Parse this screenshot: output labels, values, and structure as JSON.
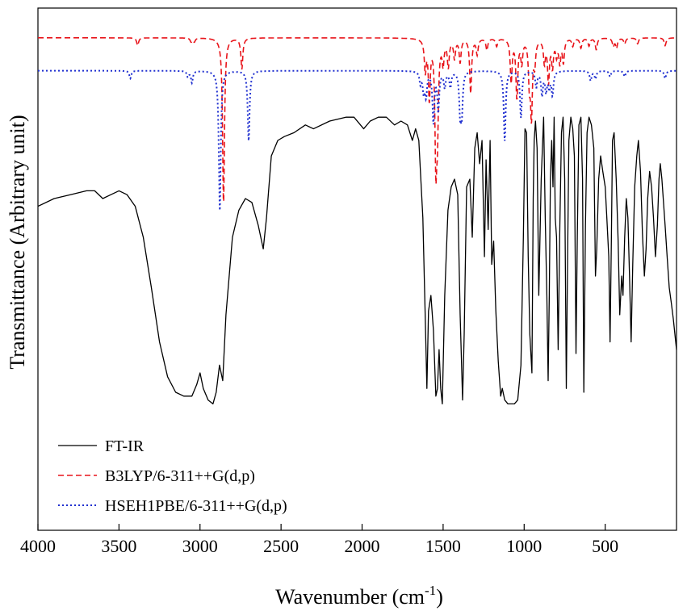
{
  "chart_data": {
    "type": "line",
    "title": "",
    "xlabel": "Wavenumber (cm",
    "xlabel_sup": "-1",
    "xlabel_suffix": ")",
    "ylabel": "Transmittance (Arbitrary unit)",
    "xlim": [
      4000,
      60
    ],
    "x_reversed": true,
    "x_ticks": [
      4000,
      3500,
      3000,
      2500,
      2000,
      1500,
      1000,
      500
    ],
    "y_ticks_shown": false,
    "grid": false,
    "legend_position": "bottom-left",
    "series": [
      {
        "name": "FT-IR",
        "style": "solid",
        "color": "#000000",
        "points": [
          [
            4000,
            0.53
          ],
          [
            3900,
            0.55
          ],
          [
            3800,
            0.56
          ],
          [
            3700,
            0.57
          ],
          [
            3650,
            0.57
          ],
          [
            3600,
            0.55
          ],
          [
            3550,
            0.56
          ],
          [
            3500,
            0.57
          ],
          [
            3450,
            0.56
          ],
          [
            3400,
            0.53
          ],
          [
            3350,
            0.45
          ],
          [
            3300,
            0.32
          ],
          [
            3250,
            0.18
          ],
          [
            3200,
            0.09
          ],
          [
            3150,
            0.05
          ],
          [
            3100,
            0.04
          ],
          [
            3050,
            0.04
          ],
          [
            3020,
            0.07
          ],
          [
            3000,
            0.1
          ],
          [
            2980,
            0.06
          ],
          [
            2950,
            0.03
          ],
          [
            2920,
            0.02
          ],
          [
            2900,
            0.05
          ],
          [
            2880,
            0.12
          ],
          [
            2860,
            0.08
          ],
          [
            2840,
            0.25
          ],
          [
            2800,
            0.45
          ],
          [
            2760,
            0.52
          ],
          [
            2720,
            0.55
          ],
          [
            2680,
            0.54
          ],
          [
            2640,
            0.48
          ],
          [
            2610,
            0.42
          ],
          [
            2590,
            0.5
          ],
          [
            2560,
            0.66
          ],
          [
            2520,
            0.7
          ],
          [
            2480,
            0.71
          ],
          [
            2420,
            0.72
          ],
          [
            2350,
            0.74
          ],
          [
            2300,
            0.73
          ],
          [
            2200,
            0.75
          ],
          [
            2100,
            0.76
          ],
          [
            2050,
            0.76
          ],
          [
            1990,
            0.73
          ],
          [
            1950,
            0.75
          ],
          [
            1900,
            0.76
          ],
          [
            1850,
            0.76
          ],
          [
            1800,
            0.74
          ],
          [
            1760,
            0.75
          ],
          [
            1720,
            0.74
          ],
          [
            1690,
            0.7
          ],
          [
            1670,
            0.73
          ],
          [
            1650,
            0.7
          ],
          [
            1625,
            0.5
          ],
          [
            1610,
            0.24
          ],
          [
            1600,
            0.06
          ],
          [
            1590,
            0.26
          ],
          [
            1575,
            0.3
          ],
          [
            1560,
            0.21
          ],
          [
            1545,
            0.04
          ],
          [
            1535,
            0.06
          ],
          [
            1525,
            0.16
          ],
          [
            1515,
            0.06
          ],
          [
            1505,
            0.02
          ],
          [
            1490,
            0.3
          ],
          [
            1470,
            0.52
          ],
          [
            1450,
            0.58
          ],
          [
            1430,
            0.6
          ],
          [
            1410,
            0.56
          ],
          [
            1395,
            0.25
          ],
          [
            1380,
            0.03
          ],
          [
            1370,
            0.2
          ],
          [
            1355,
            0.58
          ],
          [
            1335,
            0.6
          ],
          [
            1320,
            0.45
          ],
          [
            1305,
            0.68
          ],
          [
            1290,
            0.72
          ],
          [
            1275,
            0.64
          ],
          [
            1260,
            0.7
          ],
          [
            1245,
            0.4
          ],
          [
            1235,
            0.65
          ],
          [
            1222,
            0.47
          ],
          [
            1210,
            0.7
          ],
          [
            1200,
            0.38
          ],
          [
            1188,
            0.44
          ],
          [
            1175,
            0.26
          ],
          [
            1160,
            0.13
          ],
          [
            1145,
            0.04
          ],
          [
            1135,
            0.06
          ],
          [
            1120,
            0.03
          ],
          [
            1100,
            0.02
          ],
          [
            1080,
            0.02
          ],
          [
            1060,
            0.02
          ],
          [
            1040,
            0.03
          ],
          [
            1020,
            0.12
          ],
          [
            1005,
            0.45
          ],
          [
            995,
            0.73
          ],
          [
            985,
            0.72
          ],
          [
            975,
            0.4
          ],
          [
            965,
            0.2
          ],
          [
            952,
            0.1
          ],
          [
            944,
            0.55
          ],
          [
            938,
            0.7
          ],
          [
            930,
            0.75
          ],
          [
            920,
            0.68
          ],
          [
            910,
            0.3
          ],
          [
            895,
            0.6
          ],
          [
            880,
            0.76
          ],
          [
            870,
            0.5
          ],
          [
            860,
            0.3
          ],
          [
            852,
            0.08
          ],
          [
            845,
            0.3
          ],
          [
            838,
            0.6
          ],
          [
            830,
            0.7
          ],
          [
            822,
            0.58
          ],
          [
            815,
            0.76
          ],
          [
            808,
            0.5
          ],
          [
            800,
            0.45
          ],
          [
            790,
            0.16
          ],
          [
            780,
            0.48
          ],
          [
            770,
            0.72
          ],
          [
            760,
            0.76
          ],
          [
            750,
            0.6
          ],
          [
            740,
            0.06
          ],
          [
            732,
            0.4
          ],
          [
            724,
            0.7
          ],
          [
            712,
            0.76
          ],
          [
            700,
            0.73
          ],
          [
            690,
            0.66
          ],
          [
            680,
            0.15
          ],
          [
            672,
            0.45
          ],
          [
            662,
            0.74
          ],
          [
            650,
            0.76
          ],
          [
            640,
            0.6
          ],
          [
            632,
            0.05
          ],
          [
            622,
            0.48
          ],
          [
            612,
            0.72
          ],
          [
            600,
            0.76
          ],
          [
            585,
            0.74
          ],
          [
            570,
            0.68
          ],
          [
            560,
            0.35
          ],
          [
            552,
            0.42
          ],
          [
            540,
            0.6
          ],
          [
            528,
            0.66
          ],
          [
            515,
            0.62
          ],
          [
            500,
            0.58
          ],
          [
            490,
            0.5
          ],
          [
            478,
            0.4
          ],
          [
            470,
            0.18
          ],
          [
            462,
            0.44
          ],
          [
            455,
            0.7
          ],
          [
            445,
            0.72
          ],
          [
            432,
            0.6
          ],
          [
            420,
            0.44
          ],
          [
            410,
            0.25
          ],
          [
            398,
            0.35
          ],
          [
            390,
            0.3
          ],
          [
            380,
            0.45
          ],
          [
            370,
            0.55
          ],
          [
            360,
            0.5
          ],
          [
            350,
            0.35
          ],
          [
            340,
            0.18
          ],
          [
            330,
            0.38
          ],
          [
            318,
            0.58
          ],
          [
            305,
            0.66
          ],
          [
            295,
            0.7
          ],
          [
            282,
            0.62
          ],
          [
            270,
            0.46
          ],
          [
            258,
            0.35
          ],
          [
            248,
            0.42
          ],
          [
            238,
            0.55
          ],
          [
            226,
            0.62
          ],
          [
            214,
            0.58
          ],
          [
            202,
            0.5
          ],
          [
            190,
            0.4
          ],
          [
            178,
            0.48
          ],
          [
            168,
            0.6
          ],
          [
            160,
            0.64
          ],
          [
            150,
            0.6
          ],
          [
            140,
            0.54
          ],
          [
            130,
            0.48
          ],
          [
            118,
            0.4
          ],
          [
            105,
            0.32
          ],
          [
            92,
            0.28
          ],
          [
            80,
            0.24
          ],
          [
            70,
            0.2
          ],
          [
            60,
            0.16
          ]
        ]
      },
      {
        "name": "B3LYP/6-311++G(d,p)",
        "style": "dashed",
        "color": "#e8141a",
        "baseline": 0.965,
        "peaks": [
          [
            3385,
            0.02
          ],
          [
            3055,
            0.01
          ],
          [
            3035,
            0.01
          ],
          [
            2855,
            0.43
          ],
          [
            2742,
            0.08
          ],
          [
            1610,
            0.08
          ],
          [
            1585,
            0.15
          ],
          [
            1545,
            0.3
          ],
          [
            1535,
            0.2
          ],
          [
            1500,
            0.06
          ],
          [
            1468,
            0.07
          ],
          [
            1430,
            0.05
          ],
          [
            1395,
            0.06
          ],
          [
            1330,
            0.14
          ],
          [
            1290,
            0.04
          ],
          [
            1230,
            0.03
          ],
          [
            1170,
            0.02
          ],
          [
            1080,
            0.11
          ],
          [
            1045,
            0.15
          ],
          [
            1015,
            0.06
          ],
          [
            968,
            0.1
          ],
          [
            955,
            0.19
          ],
          [
            935,
            0.06
          ],
          [
            875,
            0.06
          ],
          [
            850,
            0.11
          ],
          [
            825,
            0.07
          ],
          [
            800,
            0.04
          ],
          [
            780,
            0.06
          ],
          [
            758,
            0.06
          ],
          [
            700,
            0.02
          ],
          [
            650,
            0.025
          ],
          [
            600,
            0.02
          ],
          [
            555,
            0.03
          ],
          [
            450,
            0.02
          ],
          [
            430,
            0.025
          ],
          [
            380,
            0.015
          ],
          [
            300,
            0.015
          ],
          [
            130,
            0.02
          ]
        ]
      },
      {
        "name": "HSEH1PBE/6-311++G(d,p)",
        "style": "dotted",
        "color": "#2030d0",
        "baseline": 0.88,
        "peaks": [
          [
            3430,
            0.02
          ],
          [
            3075,
            0.015
          ],
          [
            3050,
            0.03
          ],
          [
            2878,
            0.36
          ],
          [
            2700,
            0.18
          ],
          [
            1640,
            0.03
          ],
          [
            1620,
            0.05
          ],
          [
            1605,
            0.06
          ],
          [
            1560,
            0.13
          ],
          [
            1530,
            0.1
          ],
          [
            1490,
            0.04
          ],
          [
            1455,
            0.04
          ],
          [
            1395,
            0.1
          ],
          [
            1385,
            0.1
          ],
          [
            1120,
            0.18
          ],
          [
            1020,
            0.12
          ],
          [
            925,
            0.04
          ],
          [
            890,
            0.06
          ],
          [
            865,
            0.05
          ],
          [
            845,
            0.04
          ],
          [
            825,
            0.06
          ],
          [
            590,
            0.025
          ],
          [
            560,
            0.02
          ],
          [
            470,
            0.015
          ],
          [
            380,
            0.015
          ],
          [
            130,
            0.02
          ]
        ]
      }
    ]
  }
}
